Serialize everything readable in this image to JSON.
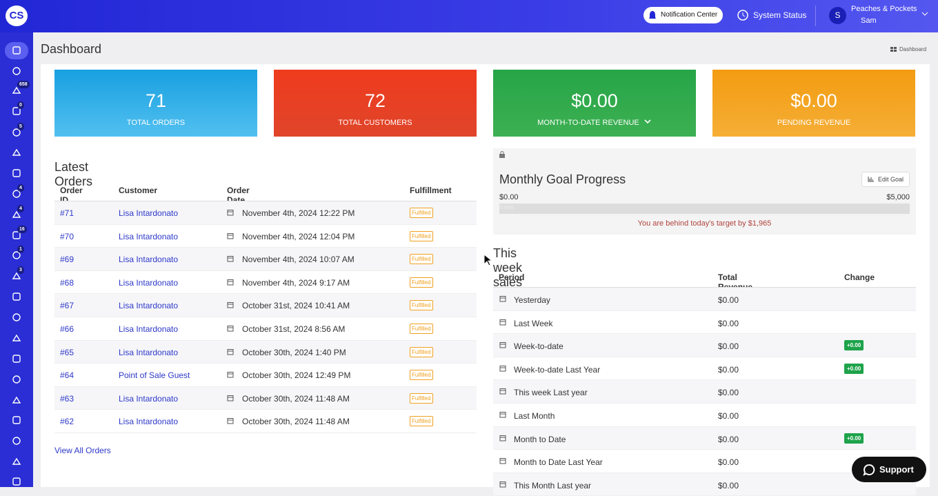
{
  "header": {
    "logo": "CS",
    "notification": "Notification Center",
    "status": "System Status",
    "account": "Peaches & Pockets",
    "user": "Sam",
    "avatar": "S"
  },
  "sidebar": {
    "badges": [
      658,
      0,
      5,
      4,
      4,
      16,
      1,
      3
    ]
  },
  "page": {
    "title": "Dashboard",
    "breadcrumb": "Dashboard"
  },
  "stats": [
    {
      "value": "71",
      "label": "TOTAL ORDERS"
    },
    {
      "value": "72",
      "label": "TOTAL CUSTOMERS"
    },
    {
      "value": "$0.00",
      "label": "MONTH-TO-DATE REVENUE"
    },
    {
      "value": "$0.00",
      "label": "PENDING REVENUE"
    }
  ],
  "latest_orders": {
    "title": "Latest Orders",
    "columns": [
      "Order ID",
      "Customer",
      "Order Date",
      "Fulfillment"
    ],
    "rows": [
      [
        "#71",
        "Lisa Intardonato",
        "November 4th, 2024 12:22 PM",
        "Fulfilled"
      ],
      [
        "#70",
        "Lisa Intardonato",
        "November 4th, 2024 12:04 PM",
        "Fulfilled"
      ],
      [
        "#69",
        "Lisa Intardonato",
        "November 4th, 2024 10:07 AM",
        "Fulfilled"
      ],
      [
        "#68",
        "Lisa Intardonato",
        "November 4th, 2024 9:17 AM",
        "Fulfilled"
      ],
      [
        "#67",
        "Lisa Intardonato",
        "October 31st, 2024 10:41 AM",
        "Fulfilled"
      ],
      [
        "#66",
        "Lisa Intardonato",
        "October 31st, 2024 8:56 AM",
        "Fulfilled"
      ],
      [
        "#65",
        "Lisa Intardonato",
        "October 30th, 2024 1:40 PM",
        "Fulfilled"
      ],
      [
        "#64",
        "Point of Sale Guest",
        "October 30th, 2024 12:49 PM",
        "Fulfilled"
      ],
      [
        "#63",
        "Lisa Intardonato",
        "October 30th, 2024 11:48 AM",
        "Fulfilled"
      ],
      [
        "#62",
        "Lisa Intardonato",
        "October 30th, 2024 11:48 AM",
        "Fulfilled"
      ]
    ],
    "link": "View All Orders"
  },
  "goal": {
    "title": "Monthly Goal Progress",
    "button": "Edit Goal",
    "min": "$0.00",
    "max": "$5,000",
    "progress": "0.00%",
    "message": "You are behind today's target by $1,965"
  },
  "weekly": {
    "title": "This week sales vs last week",
    "columns": [
      "Period",
      "Total Revenue",
      "Change"
    ],
    "rows": [
      {
        "period": "Yesterday",
        "revenue": "$0.00"
      },
      {
        "period": "Last Week",
        "revenue": "$0.00"
      },
      {
        "period": "Week-to-date",
        "revenue": "$0.00",
        "change": "+0.00"
      },
      {
        "period": "Week-to-date Last Year",
        "revenue": "$0.00",
        "change": "+0.00"
      },
      {
        "period": "This week Last year",
        "revenue": "$0.00"
      },
      {
        "period": "Last Month",
        "revenue": "$0.00"
      },
      {
        "period": "Month to Date",
        "revenue": "$0.00",
        "change": "+0.00"
      },
      {
        "period": "Month to Date Last Year",
        "revenue": "$0.00"
      },
      {
        "period": "This Month Last year",
        "revenue": "$0.00"
      }
    ]
  },
  "support": "Support"
}
